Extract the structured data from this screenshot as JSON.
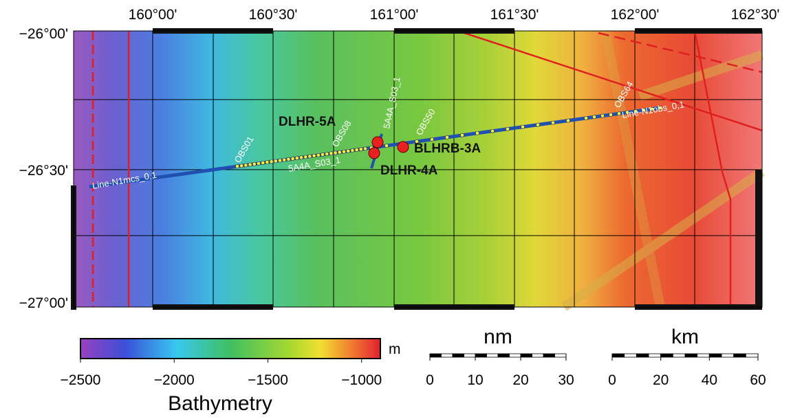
{
  "map": {
    "lon_labels": [
      "160°00'",
      "160°30'",
      "161°00'",
      "161°30'",
      "162°00'",
      "162°30'"
    ],
    "lat_labels": [
      "−26°00'",
      "−26°30'",
      "−27°00'"
    ],
    "sites": [
      "DLHR-5A",
      "DLHR-4A",
      "BLHRB-3A"
    ],
    "lines": [
      "Line-N1mcs_0,1",
      "Line-N1obs_0,1",
      "5A4A_S03_1",
      "5A4A_S03_1"
    ],
    "obs": [
      "OBS01",
      "OBS08",
      "OBS50",
      "OBS64"
    ]
  },
  "colorbar": {
    "title": "Bathymetry",
    "unit": "m",
    "lim": [
      -2500,
      -900
    ],
    "ticks": [
      {
        "value": -2500,
        "label": "−2500"
      },
      {
        "value": -2000,
        "label": "−2000"
      },
      {
        "value": -1500,
        "label": "−1500"
      },
      {
        "value": -1000,
        "label": "−1000"
      }
    ]
  },
  "scale_bars": [
    {
      "unit": "nm",
      "ticks": [
        0,
        10,
        20,
        30
      ]
    },
    {
      "unit": "km",
      "ticks": [
        0,
        20,
        40,
        60
      ]
    }
  ]
}
